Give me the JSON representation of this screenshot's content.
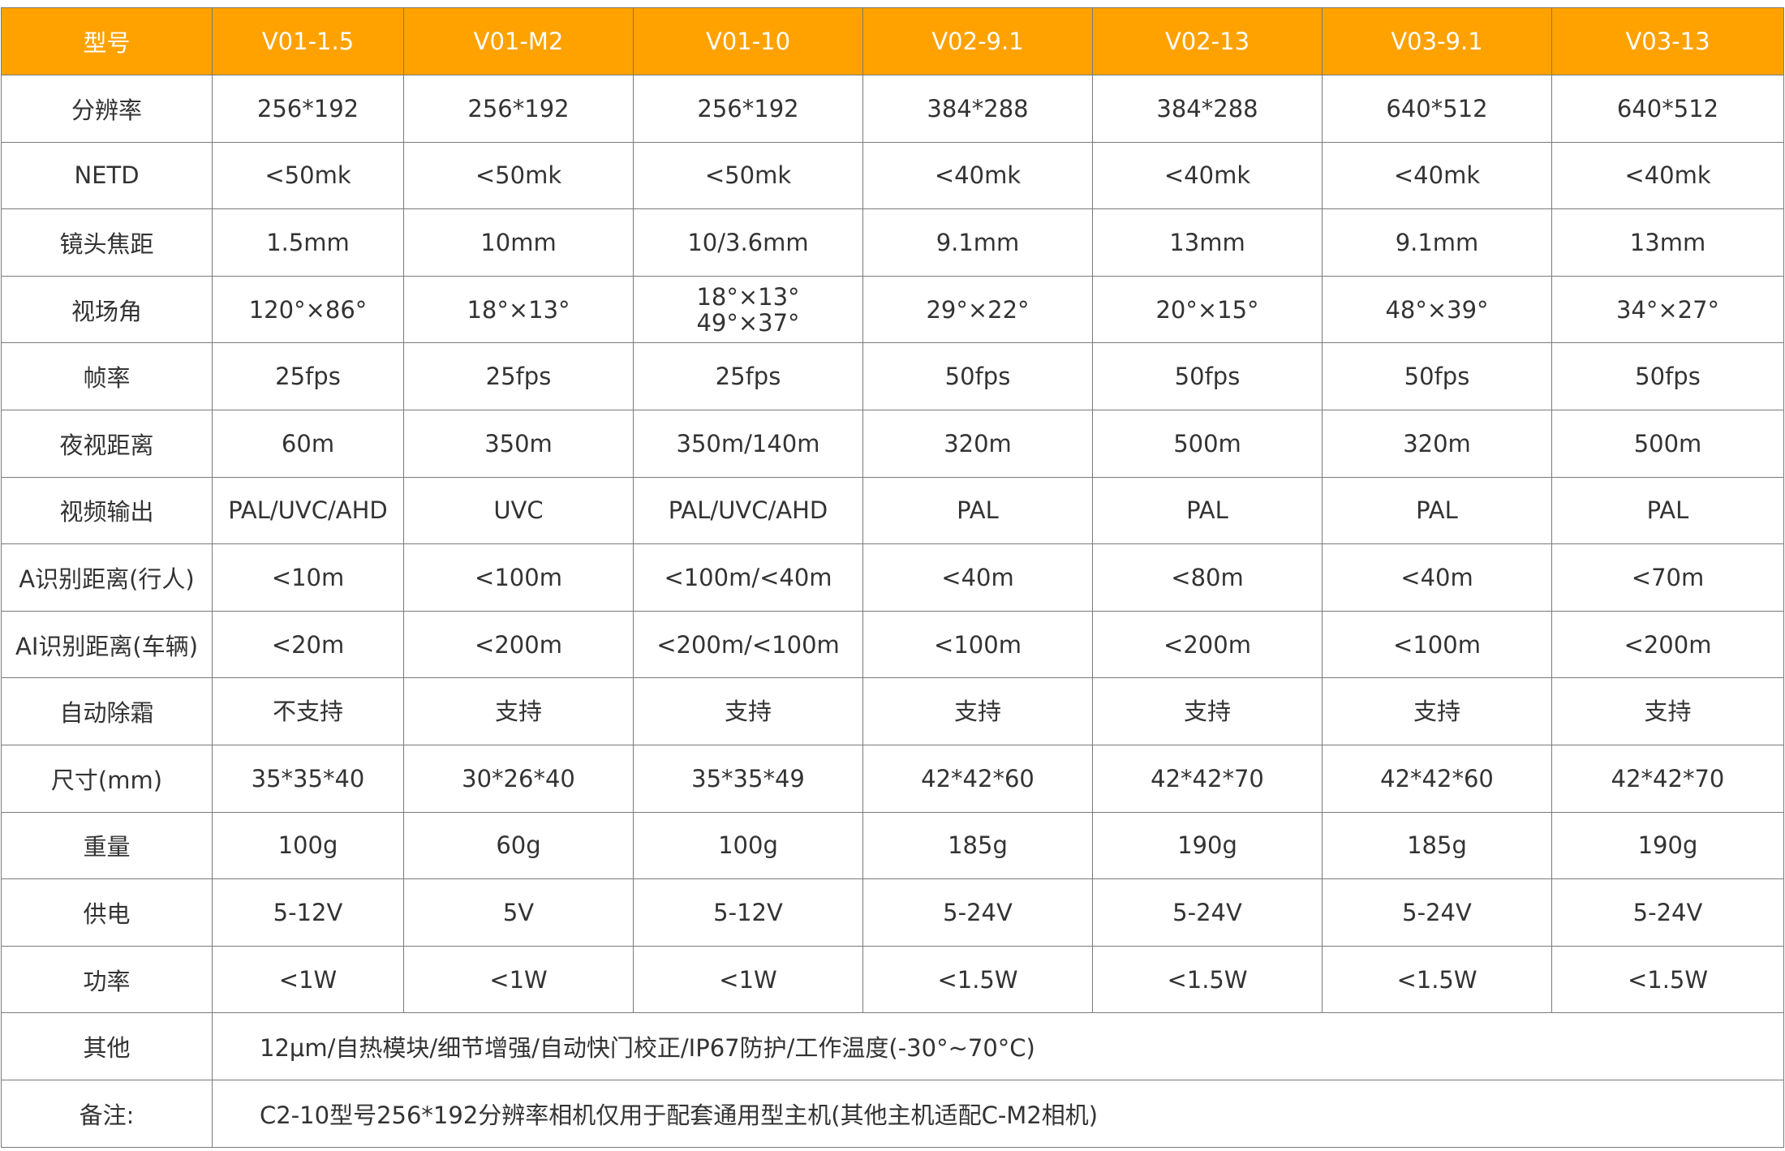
{
  "table": {
    "header": [
      "型号",
      "V01-1.5",
      "V01-M2",
      "V01-10",
      "V02-9.1",
      "V02-13",
      "V03-9.1",
      "V03-13"
    ],
    "rows": [
      {
        "label": "分辨率",
        "cells": [
          [
            "256*192"
          ],
          [
            "256*192"
          ],
          [
            "256*192"
          ],
          [
            "384*288"
          ],
          [
            "384*288"
          ],
          [
            "640*512"
          ],
          [
            "640*512"
          ]
        ]
      },
      {
        "label": "NETD",
        "cells": [
          [
            "<50mk"
          ],
          [
            "<50mk"
          ],
          [
            "<50mk"
          ],
          [
            "<40mk"
          ],
          [
            "<40mk"
          ],
          [
            "<40mk"
          ],
          [
            "<40mk"
          ]
        ]
      },
      {
        "label": "镜头焦距",
        "cells": [
          [
            "1.5mm"
          ],
          [
            "10mm"
          ],
          [
            "10/3.6mm"
          ],
          [
            "9.1mm"
          ],
          [
            "13mm"
          ],
          [
            "9.1mm"
          ],
          [
            "13mm"
          ]
        ]
      },
      {
        "label": "视场角",
        "cells": [
          [
            "120°×86°"
          ],
          [
            "18°×13°"
          ],
          [
            "18°×13°",
            "49°×37°"
          ],
          [
            "29°×22°"
          ],
          [
            "20°×15°"
          ],
          [
            "48°×39°"
          ],
          [
            "34°×27°"
          ]
        ]
      },
      {
        "label": "帧率",
        "cells": [
          [
            "25fps"
          ],
          [
            "25fps"
          ],
          [
            "25fps"
          ],
          [
            "50fps"
          ],
          [
            "50fps"
          ],
          [
            "50fps"
          ],
          [
            "50fps"
          ]
        ]
      },
      {
        "label": "夜视距离",
        "cells": [
          [
            "60m"
          ],
          [
            "350m"
          ],
          [
            "350m/140m"
          ],
          [
            "320m"
          ],
          [
            "500m"
          ],
          [
            "320m"
          ],
          [
            "500m"
          ]
        ]
      },
      {
        "label": "视频输出",
        "cells": [
          [
            "PAL/UVC/AHD"
          ],
          [
            "UVC"
          ],
          [
            "PAL/UVC/AHD"
          ],
          [
            "PAL"
          ],
          [
            "PAL"
          ],
          [
            "PAL"
          ],
          [
            "PAL"
          ]
        ]
      },
      {
        "label": "A识别距离(行人)",
        "cells": [
          [
            "<10m"
          ],
          [
            "<100m"
          ],
          [
            "<100m/<40m"
          ],
          [
            "<40m"
          ],
          [
            "<80m"
          ],
          [
            "<40m"
          ],
          [
            "<70m"
          ]
        ]
      },
      {
        "label": "AI识别距离(车辆)",
        "cells": [
          [
            "<20m"
          ],
          [
            "<200m"
          ],
          [
            "<200m/<100m"
          ],
          [
            "<100m"
          ],
          [
            "<200m"
          ],
          [
            "<100m"
          ],
          [
            "<200m"
          ]
        ]
      },
      {
        "label": "自动除霜",
        "cells": [
          [
            "不支持"
          ],
          [
            "支持"
          ],
          [
            "支持"
          ],
          [
            "支持"
          ],
          [
            "支持"
          ],
          [
            "支持"
          ],
          [
            "支持"
          ]
        ]
      },
      {
        "label": "尺寸(mm)",
        "cells": [
          [
            "35*35*40"
          ],
          [
            "30*26*40"
          ],
          [
            "35*35*49"
          ],
          [
            "42*42*60"
          ],
          [
            "42*42*70"
          ],
          [
            "42*42*60"
          ],
          [
            "42*42*70"
          ]
        ]
      },
      {
        "label": "重量",
        "cells": [
          [
            "100g"
          ],
          [
            "60g"
          ],
          [
            "100g"
          ],
          [
            "185g"
          ],
          [
            "190g"
          ],
          [
            "185g"
          ],
          [
            "190g"
          ]
        ]
      },
      {
        "label": "供电",
        "cells": [
          [
            "5-12V"
          ],
          [
            "5V"
          ],
          [
            "5-12V"
          ],
          [
            "5-24V"
          ],
          [
            "5-24V"
          ],
          [
            "5-24V"
          ],
          [
            "5-24V"
          ]
        ]
      },
      {
        "label": "功率",
        "cells": [
          [
            "<1W"
          ],
          [
            "<1W"
          ],
          [
            "<1W"
          ],
          [
            "<1.5W"
          ],
          [
            "<1.5W"
          ],
          [
            "<1.5W"
          ],
          [
            "<1.5W"
          ]
        ]
      }
    ],
    "notes": [
      {
        "label": "其他",
        "text": "12μm/自热模块/细节增强/自动快门校正/IP67防护/工作温度(-30°~70°C)"
      },
      {
        "label": "备注:",
        "text": "C2-10型号256*192分辨率相机仅用于配套通用型主机(其他主机适配C-M2相机)"
      }
    ]
  },
  "colors": {
    "header_bg": "#ffa200",
    "header_text": "#ffffff",
    "body_text": "#333333",
    "border": "#7a7a7a"
  }
}
